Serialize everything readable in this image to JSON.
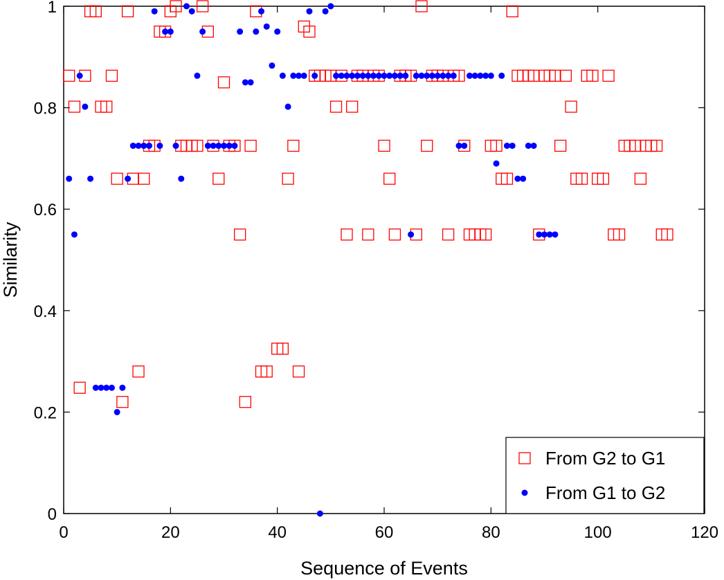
{
  "chart_data": {
    "type": "scatter",
    "xlabel": "Sequence of Events",
    "ylabel": "Similarity",
    "xlim": [
      0,
      120
    ],
    "ylim": [
      0,
      1
    ],
    "xticks": [
      0,
      20,
      40,
      60,
      80,
      100,
      120
    ],
    "yticks": [
      0,
      0.2,
      0.4,
      0.6,
      0.8,
      1
    ],
    "xtick_labels": [
      "0",
      "20",
      "40",
      "60",
      "80",
      "100",
      "120"
    ],
    "ytick_labels": [
      "0",
      "0.2",
      "0.4",
      "0.6",
      "0.8",
      "1"
    ],
    "grid": false,
    "legend_position": "bottom-right",
    "series": [
      {
        "name": "From G2 to G1",
        "marker": "open-square",
        "color": "#ff0000",
        "points": [
          [
            1,
            0.863
          ],
          [
            2,
            0.802
          ],
          [
            3,
            0.248
          ],
          [
            4,
            0.863
          ],
          [
            5,
            0.99
          ],
          [
            6,
            0.99
          ],
          [
            7,
            0.802
          ],
          [
            8,
            0.802
          ],
          [
            9,
            0.863
          ],
          [
            10,
            0.66
          ],
          [
            11,
            0.22
          ],
          [
            12,
            0.99
          ],
          [
            13,
            0.66
          ],
          [
            14,
            0.28
          ],
          [
            15,
            0.66
          ],
          [
            16,
            0.725
          ],
          [
            17,
            0.725
          ],
          [
            18,
            0.95
          ],
          [
            19,
            0.95
          ],
          [
            20,
            0.99
          ],
          [
            21,
            1.0
          ],
          [
            22,
            0.725
          ],
          [
            23,
            0.725
          ],
          [
            24,
            0.725
          ],
          [
            25,
            0.725
          ],
          [
            26,
            1.0
          ],
          [
            27,
            0.95
          ],
          [
            28,
            0.725
          ],
          [
            29,
            0.66
          ],
          [
            30,
            0.85
          ],
          [
            31,
            0.725
          ],
          [
            32,
            0.725
          ],
          [
            33,
            0.55
          ],
          [
            34,
            0.22
          ],
          [
            35,
            0.725
          ],
          [
            36,
            0.99
          ],
          [
            37,
            0.28
          ],
          [
            38,
            0.28
          ],
          [
            40,
            0.325
          ],
          [
            41,
            0.325
          ],
          [
            42,
            0.66
          ],
          [
            43,
            0.725
          ],
          [
            44,
            0.28
          ],
          [
            45,
            0.96
          ],
          [
            46,
            0.95
          ],
          [
            47,
            0.863
          ],
          [
            48,
            0.863
          ],
          [
            49,
            0.863
          ],
          [
            50,
            0.863
          ],
          [
            51,
            0.802
          ],
          [
            52,
            0.863
          ],
          [
            53,
            0.55
          ],
          [
            54,
            0.802
          ],
          [
            55,
            0.863
          ],
          [
            56,
            0.863
          ],
          [
            57,
            0.55
          ],
          [
            58,
            0.863
          ],
          [
            59,
            0.863
          ],
          [
            60,
            0.725
          ],
          [
            61,
            0.66
          ],
          [
            62,
            0.55
          ],
          [
            63,
            0.863
          ],
          [
            64,
            0.863
          ],
          [
            65,
            0.863
          ],
          [
            66,
            0.55
          ],
          [
            67,
            1.0
          ],
          [
            68,
            0.725
          ],
          [
            69,
            0.863
          ],
          [
            70,
            0.863
          ],
          [
            71,
            0.863
          ],
          [
            72,
            0.55
          ],
          [
            73,
            0.863
          ],
          [
            74,
            0.863
          ],
          [
            75,
            0.725
          ],
          [
            76,
            0.55
          ],
          [
            77,
            0.55
          ],
          [
            78,
            0.55
          ],
          [
            79,
            0.55
          ],
          [
            80,
            0.725
          ],
          [
            81,
            0.725
          ],
          [
            82,
            0.66
          ],
          [
            83,
            0.66
          ],
          [
            84,
            0.99
          ],
          [
            85,
            0.863
          ],
          [
            86,
            0.863
          ],
          [
            87,
            0.863
          ],
          [
            88,
            0.863
          ],
          [
            89,
            0.55
          ],
          [
            90,
            0.863
          ],
          [
            91,
            0.863
          ],
          [
            92,
            0.863
          ],
          [
            93,
            0.725
          ],
          [
            94,
            0.863
          ],
          [
            95,
            0.802
          ],
          [
            96,
            0.66
          ],
          [
            97,
            0.66
          ],
          [
            98,
            0.863
          ],
          [
            99,
            0.863
          ],
          [
            100,
            0.66
          ],
          [
            101,
            0.66
          ],
          [
            102,
            0.863
          ],
          [
            103,
            0.55
          ],
          [
            104,
            0.55
          ],
          [
            105,
            0.725
          ],
          [
            106,
            0.725
          ],
          [
            107,
            0.725
          ],
          [
            108,
            0.66
          ],
          [
            109,
            0.725
          ],
          [
            110,
            0.725
          ],
          [
            111,
            0.725
          ],
          [
            112,
            0.55
          ],
          [
            113,
            0.55
          ]
        ]
      },
      {
        "name": "From G1 to G2",
        "marker": "filled-circle",
        "color": "#0000ff",
        "points": [
          [
            1,
            0.66
          ],
          [
            2,
            0.55
          ],
          [
            3,
            0.863
          ],
          [
            4,
            0.802
          ],
          [
            5,
            0.66
          ],
          [
            6,
            0.248
          ],
          [
            7,
            0.248
          ],
          [
            8,
            0.248
          ],
          [
            9,
            0.248
          ],
          [
            10,
            0.2
          ],
          [
            11,
            0.248
          ],
          [
            12,
            0.66
          ],
          [
            13,
            0.725
          ],
          [
            14,
            0.725
          ],
          [
            15,
            0.725
          ],
          [
            16,
            0.725
          ],
          [
            17,
            0.99
          ],
          [
            18,
            0.725
          ],
          [
            19,
            0.95
          ],
          [
            20,
            0.95
          ],
          [
            21,
            0.725
          ],
          [
            22,
            0.66
          ],
          [
            23,
            1.0
          ],
          [
            24,
            0.99
          ],
          [
            25,
            0.863
          ],
          [
            26,
            0.95
          ],
          [
            27,
            0.725
          ],
          [
            28,
            0.725
          ],
          [
            29,
            0.725
          ],
          [
            30,
            0.725
          ],
          [
            31,
            0.725
          ],
          [
            32,
            0.725
          ],
          [
            33,
            0.95
          ],
          [
            34,
            0.85
          ],
          [
            35,
            0.85
          ],
          [
            36,
            0.95
          ],
          [
            37,
            0.99
          ],
          [
            38,
            0.96
          ],
          [
            39,
            0.883
          ],
          [
            40,
            0.95
          ],
          [
            41,
            0.863
          ],
          [
            42,
            0.802
          ],
          [
            43,
            0.863
          ],
          [
            44,
            0.863
          ],
          [
            45,
            0.863
          ],
          [
            46,
            0.99
          ],
          [
            47,
            0.863
          ],
          [
            48,
            0.0
          ],
          [
            49,
            0.99
          ],
          [
            50,
            1.0
          ],
          [
            51,
            0.863
          ],
          [
            52,
            0.863
          ],
          [
            53,
            0.863
          ],
          [
            54,
            0.863
          ],
          [
            55,
            0.863
          ],
          [
            56,
            0.863
          ],
          [
            57,
            0.863
          ],
          [
            58,
            0.863
          ],
          [
            59,
            0.863
          ],
          [
            60,
            0.863
          ],
          [
            61,
            0.863
          ],
          [
            62,
            0.863
          ],
          [
            63,
            0.863
          ],
          [
            64,
            0.863
          ],
          [
            65,
            0.55
          ],
          [
            66,
            0.863
          ],
          [
            67,
            0.863
          ],
          [
            68,
            0.863
          ],
          [
            69,
            0.863
          ],
          [
            70,
            0.863
          ],
          [
            71,
            0.863
          ],
          [
            72,
            0.863
          ],
          [
            73,
            0.863
          ],
          [
            74,
            0.725
          ],
          [
            75,
            0.725
          ],
          [
            76,
            0.863
          ],
          [
            77,
            0.863
          ],
          [
            78,
            0.863
          ],
          [
            79,
            0.863
          ],
          [
            80,
            0.863
          ],
          [
            81,
            0.69
          ],
          [
            82,
            0.863
          ],
          [
            83,
            0.725
          ],
          [
            84,
            0.725
          ],
          [
            85,
            0.66
          ],
          [
            86,
            0.66
          ],
          [
            87,
            0.725
          ],
          [
            88,
            0.725
          ],
          [
            89,
            0.55
          ],
          [
            90,
            0.55
          ],
          [
            91,
            0.55
          ],
          [
            92,
            0.55
          ]
        ]
      }
    ]
  }
}
